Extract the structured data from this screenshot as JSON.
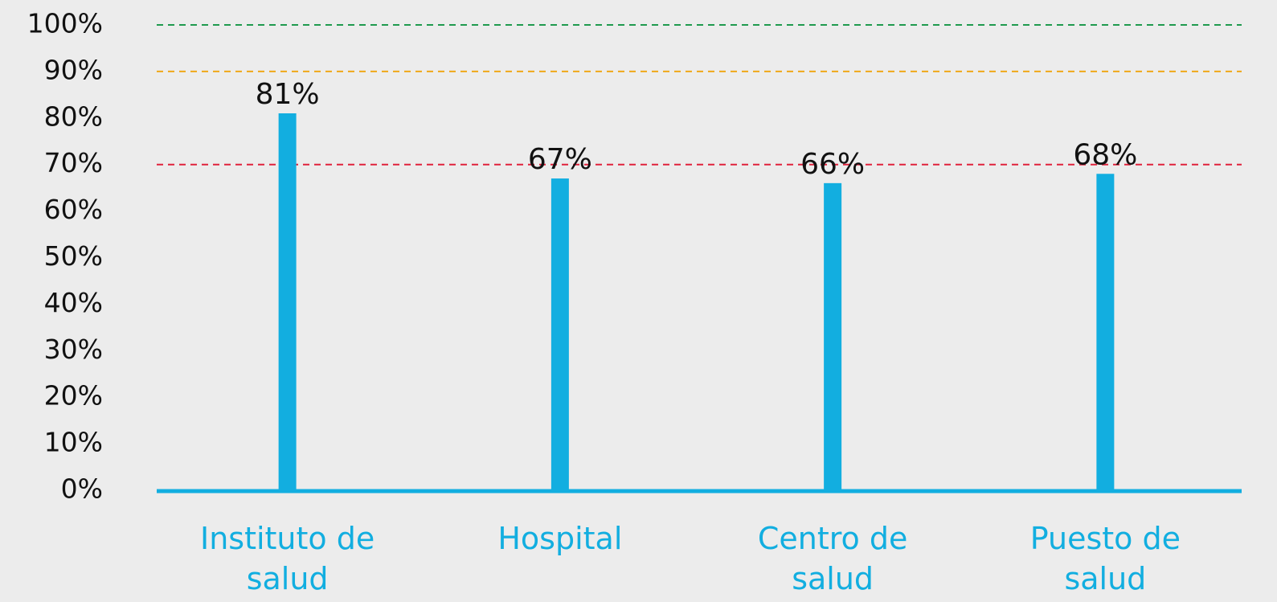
{
  "chart_data": {
    "type": "bar",
    "categories": [
      "Instituto de salud",
      "Hospital",
      "Centro de salud",
      "Puesto de salud"
    ],
    "values": [
      81,
      67,
      66,
      68
    ],
    "value_labels": [
      "81%",
      "67%",
      "66%",
      "68%"
    ],
    "color": "#12aee0",
    "ylim": [
      0,
      100
    ],
    "yticks": [
      {
        "value": 0,
        "label": "0%"
      },
      {
        "value": 10,
        "label": "10%"
      },
      {
        "value": 20,
        "label": "20%"
      },
      {
        "value": 30,
        "label": "30%"
      },
      {
        "value": 40,
        "label": "40%"
      },
      {
        "value": 50,
        "label": "50%"
      },
      {
        "value": 60,
        "label": "60%"
      },
      {
        "value": 70,
        "label": "70%"
      },
      {
        "value": 80,
        "label": "80%"
      },
      {
        "value": 90,
        "label": "90%"
      },
      {
        "value": 100,
        "label": "100%"
      }
    ],
    "reference_lines": [
      {
        "value": 100,
        "color": "#1f9a4e"
      },
      {
        "value": 90,
        "color": "#f0a818"
      },
      {
        "value": 70,
        "color": "#e0223c"
      }
    ]
  }
}
